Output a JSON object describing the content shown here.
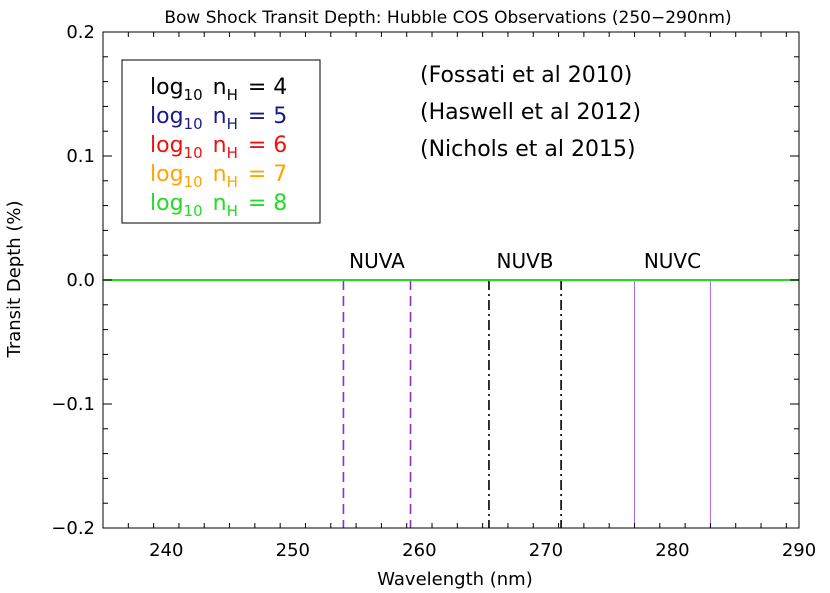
{
  "chart_data": {
    "type": "line",
    "title": "Bow Shock Transit Depth: Hubble COS Observations (250−290nm)",
    "xlabel": "Wavelength (nm)",
    "ylabel": "Transit Depth (%)",
    "xlim": [
      235,
      290
    ],
    "ylim": [
      -0.2,
      0.2
    ],
    "xticks": [
      240,
      250,
      260,
      270,
      280,
      290
    ],
    "xtick_labels": [
      "240",
      "250",
      "260",
      "270",
      "280",
      "290"
    ],
    "yticks": [
      0.2,
      0.1,
      0.0,
      -0.1,
      -0.2
    ],
    "ytick_labels": [
      "0.2",
      "0.1",
      "0.0",
      "−0.1",
      "−0.2"
    ],
    "grid": false,
    "legend_position": "top-left",
    "series": [
      {
        "name": "log10 nH = 4",
        "base": "log",
        "sub": "10",
        "n": "n",
        "nsub": "H",
        "eq": "= 4",
        "color": "#000000",
        "x": [
          235,
          290
        ],
        "y": [
          0.0,
          0.0
        ]
      },
      {
        "name": "log10 nH = 5",
        "base": "log",
        "sub": "10",
        "n": "n",
        "nsub": "H",
        "eq": "= 5",
        "color": "#1a1a8c",
        "x": [
          235,
          290
        ],
        "y": [
          0.0,
          0.0
        ]
      },
      {
        "name": "log10 nH = 6",
        "base": "log",
        "sub": "10",
        "n": "n",
        "nsub": "H",
        "eq": "= 6",
        "color": "#ee1111",
        "x": [
          235,
          290
        ],
        "y": [
          0.0,
          0.0
        ]
      },
      {
        "name": "log10 nH = 7",
        "base": "log",
        "sub": "10",
        "n": "n",
        "nsub": "H",
        "eq": "= 7",
        "color": "#ffa500",
        "x": [
          235,
          290
        ],
        "y": [
          0.0,
          0.0
        ]
      },
      {
        "name": "log10 nH = 8",
        "base": "log",
        "sub": "10",
        "n": "n",
        "nsub": "H",
        "eq": "= 8",
        "color": "#22dd22",
        "x": [
          235,
          290
        ],
        "y": [
          0.0,
          0.0
        ]
      }
    ],
    "references": [
      "(Fossati et al 2010)",
      "(Haswell et al 2012)",
      "(Nichols et al 2015)"
    ],
    "bands": [
      {
        "label": "NUVA",
        "x": [
          254.0,
          259.3
        ],
        "color": "#8a2be2",
        "style": "dashed"
      },
      {
        "label": "NUVB",
        "x": [
          265.5,
          271.2
        ],
        "color": "#000000",
        "style": "dashdot"
      },
      {
        "label": "NUVC",
        "x": [
          277.0,
          283.0
        ],
        "color": "#b266e0",
        "style": "solid"
      }
    ]
  }
}
